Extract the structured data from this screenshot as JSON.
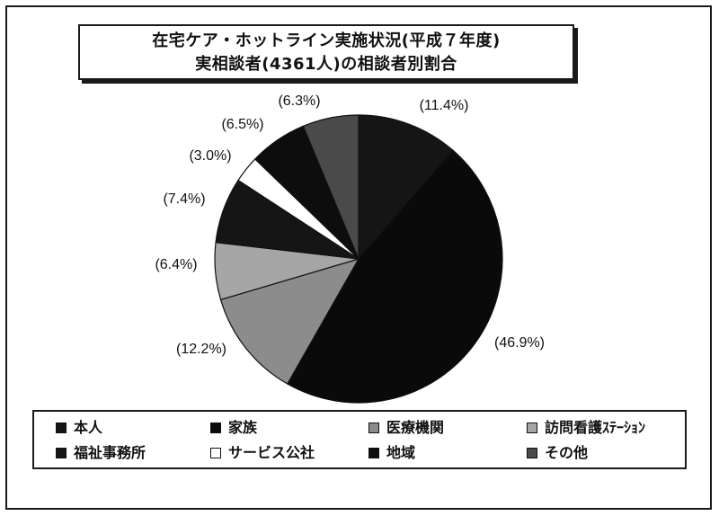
{
  "chart_data": {
    "type": "pie",
    "title": "在宅ケア・ホットライン実施状況(平成７年度)",
    "subtitle": "実相談者(4361人)の相談者別割合",
    "slices": [
      {
        "name": "本人",
        "value": 11.4,
        "label": "(11.4%)",
        "color": "#151515"
      },
      {
        "name": "家族",
        "value": 46.9,
        "label": "(46.9%)",
        "color": "#0a0a0a"
      },
      {
        "name": "医療機関",
        "value": 12.2,
        "label": "(12.2%)",
        "color": "#8c8c8c"
      },
      {
        "name": "訪問看護ｽﾃｰｼｮﾝ",
        "value": 6.4,
        "label": "(6.4%)",
        "color": "#a6a6a6"
      },
      {
        "name": "福祉事務所",
        "value": 7.4,
        "label": "(7.4%)",
        "color": "#151515"
      },
      {
        "name": "サービス公社",
        "value": 3.0,
        "label": "(3.0%)",
        "color": "#ffffff"
      },
      {
        "name": "地域",
        "value": 6.5,
        "label": "(6.5%)",
        "color": "#0d0d0d"
      },
      {
        "name": "その他",
        "value": 6.3,
        "label": "(6.3%)",
        "color": "#4a4a4a"
      }
    ],
    "legend_placement": "bottom"
  }
}
